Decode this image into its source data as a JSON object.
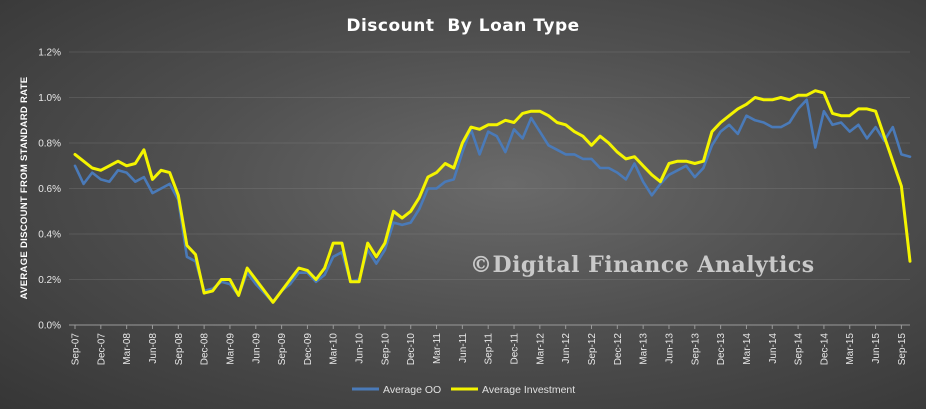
{
  "chart_data": {
    "type": "line",
    "title": "Discount  By Loan Type",
    "ylabel": "AVERAGE DISCOUNT FROM STANDARD RATE",
    "xlabel": "",
    "ylim": [
      0,
      1.2
    ],
    "y_ticks": [
      "0.0%",
      "0.2%",
      "0.4%",
      "0.6%",
      "0.8%",
      "1.0%",
      "1.2%"
    ],
    "y_tick_values": [
      0,
      0.2,
      0.4,
      0.6,
      0.8,
      1.0,
      1.2
    ],
    "grid": true,
    "legend_position": "bottom",
    "watermark": "©Digital Finance Analytics",
    "x_start": "2007-09",
    "x_end": "2015-09",
    "x_tick_labels": [
      "Sep-07",
      "Dec-07",
      "Mar-08",
      "Jun-08",
      "Sep-08",
      "Dec-08",
      "Mar-09",
      "Jun-09",
      "Sep-09",
      "Dec-09",
      "Mar-10",
      "Jun-10",
      "Sep-10",
      "Dec-10",
      "Mar-11",
      "Jun-11",
      "Sep-11",
      "Dec-11",
      "Mar-12",
      "Jun-12",
      "Sep-12",
      "Dec-12",
      "Mar-13",
      "Jun-13",
      "Sep-13",
      "Dec-13",
      "Mar-14",
      "Jun-14",
      "Sep-14",
      "Dec-14",
      "Mar-15",
      "Jun-15",
      "Sep-15"
    ],
    "series": [
      {
        "name": "Average OO",
        "color": "#4a7ab8",
        "values": [
          0.7,
          0.62,
          0.67,
          0.64,
          0.63,
          0.68,
          0.67,
          0.63,
          0.65,
          0.58,
          0.6,
          0.62,
          0.55,
          0.3,
          0.28,
          0.15,
          0.16,
          0.19,
          0.18,
          0.13,
          0.23,
          0.18,
          0.14,
          0.1,
          0.15,
          0.18,
          0.23,
          0.23,
          0.19,
          0.22,
          0.3,
          0.32,
          0.19,
          0.2,
          0.33,
          0.27,
          0.33,
          0.45,
          0.44,
          0.45,
          0.51,
          0.6,
          0.6,
          0.63,
          0.64,
          0.76,
          0.86,
          0.75,
          0.85,
          0.83,
          0.76,
          0.86,
          0.82,
          0.91,
          0.85,
          0.79,
          0.77,
          0.75,
          0.75,
          0.73,
          0.73,
          0.69,
          0.69,
          0.67,
          0.64,
          0.71,
          0.63,
          0.57,
          0.62,
          0.66,
          0.68,
          0.7,
          0.65,
          0.69,
          0.79,
          0.85,
          0.88,
          0.84,
          0.92,
          0.9,
          0.89,
          0.87,
          0.87,
          0.89,
          0.95,
          0.99,
          0.78,
          0.94,
          0.88,
          0.89,
          0.85,
          0.88,
          0.82,
          0.87,
          0.81,
          0.87,
          0.75,
          0.74
        ]
      },
      {
        "name": "Average Investment",
        "color": "#f4f400",
        "values": [
          0.75,
          0.72,
          0.69,
          0.68,
          0.7,
          0.72,
          0.7,
          0.71,
          0.77,
          0.64,
          0.68,
          0.67,
          0.57,
          0.35,
          0.31,
          0.14,
          0.15,
          0.2,
          0.2,
          0.13,
          0.25,
          0.2,
          0.15,
          0.1,
          0.15,
          0.2,
          0.25,
          0.24,
          0.2,
          0.25,
          0.36,
          0.36,
          0.19,
          0.19,
          0.36,
          0.3,
          0.36,
          0.5,
          0.47,
          0.5,
          0.56,
          0.65,
          0.67,
          0.71,
          0.69,
          0.8,
          0.87,
          0.86,
          0.88,
          0.88,
          0.9,
          0.89,
          0.93,
          0.94,
          0.94,
          0.92,
          0.89,
          0.88,
          0.85,
          0.83,
          0.79,
          0.83,
          0.8,
          0.76,
          0.73,
          0.74,
          0.7,
          0.66,
          0.63,
          0.71,
          0.72,
          0.72,
          0.71,
          0.72,
          0.85,
          0.89,
          0.92,
          0.95,
          0.97,
          1.0,
          0.99,
          0.99,
          1.0,
          0.99,
          1.01,
          1.01,
          1.03,
          1.02,
          0.93,
          0.92,
          0.92,
          0.95,
          0.95,
          0.94,
          0.83,
          0.72,
          0.61,
          0.28
        ]
      }
    ]
  }
}
